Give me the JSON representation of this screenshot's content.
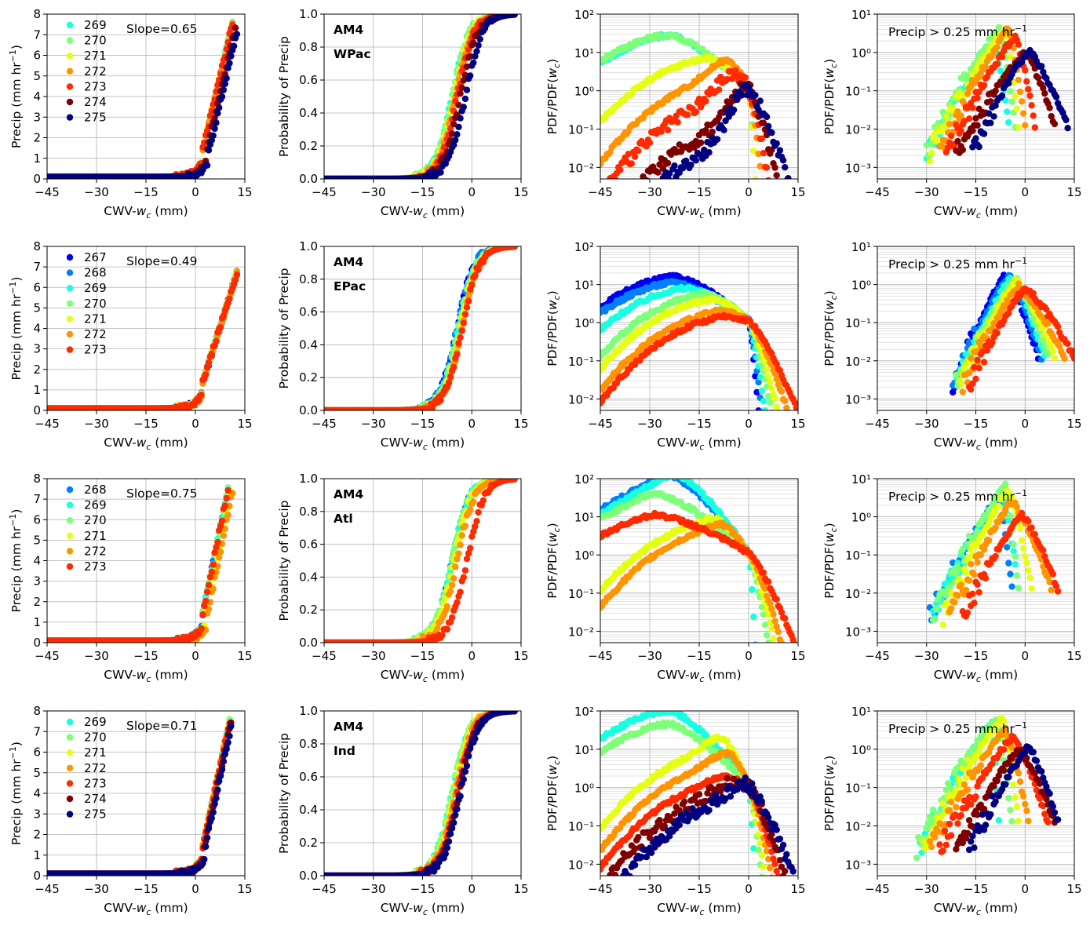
{
  "figure": {
    "rows": [
      "WPac",
      "EPac",
      "Atl",
      "Ind"
    ],
    "model": "AM4"
  },
  "colors": {
    "267": "#0000f0",
    "268": "#0080ff",
    "269": "#16ffe1",
    "270": "#7dff7a",
    "271": "#e5ff12",
    "272": "#ff9400",
    "273": "#ff2a00",
    "274": "#7f0000",
    "275": "#000080"
  },
  "labels": {
    "xlabel": "CWV-w_c (mm)",
    "ylabel_precip": "Precip (mm hr^-1)",
    "ylabel_prob": "Probability of Precip",
    "ylabel_pdf": "PDF/PDF(w_c)",
    "precip_threshold": "Precip > 0.25 mm hr^-1",
    "model_label": "AM4"
  },
  "x_ticks": [
    "−45",
    "−30",
    "−15",
    "0",
    "15"
  ],
  "precip_y_ticks": [
    "0",
    "1",
    "2",
    "3",
    "4",
    "5",
    "6",
    "7",
    "8"
  ],
  "prob_y_ticks": [
    "0.0",
    "0.2",
    "0.4",
    "0.6",
    "0.8",
    "1.0"
  ],
  "pdf_y_ticks": [
    "-2",
    "-1",
    "0",
    "1",
    "2"
  ],
  "cond_y_ticks": [
    "-3",
    "-2",
    "-1",
    "0",
    "1"
  ],
  "chart_data": [
    {
      "type": "scatter",
      "panel": "precip",
      "basin": "WPac",
      "slope_text": "Slope=0.65",
      "series": [
        "269",
        "270",
        "271",
        "272",
        "273",
        "274",
        "275"
      ],
      "x_shift": [
        0,
        0,
        0,
        0,
        0,
        1.2,
        2.0
      ],
      "slope": 0.65,
      "xlim": [
        -45,
        15
      ],
      "ylim": [
        0,
        8
      ],
      "xlabel": "CWV-w_c (mm)",
      "ylabel": "Precip (mm hr^-1)"
    },
    {
      "type": "scatter",
      "panel": "probability",
      "basin": "WPac",
      "series": [
        "269",
        "270",
        "271",
        "272",
        "273",
        "274",
        "275"
      ],
      "x50": [
        -6,
        -6,
        -5.5,
        -5,
        -4.5,
        -3.5,
        -2
      ],
      "xlim": [
        -45,
        15
      ],
      "ylim": [
        0,
        1
      ]
    },
    {
      "type": "scatter",
      "panel": "pdf",
      "basin": "WPac",
      "yscale": "log",
      "series": [
        "269",
        "270",
        "271",
        "272",
        "273",
        "274",
        "275"
      ],
      "plateau_log10": [
        1.35,
        1.4,
        0.75,
        0.3,
        -0.3,
        -1.0,
        -1.4
      ],
      "peak_x": [
        -24,
        -24,
        -12,
        -6,
        -4,
        -1,
        0
      ],
      "peak_log10": [
        1.45,
        1.45,
        0.85,
        0.8,
        0.45,
        0.05,
        0.05
      ],
      "cutoff_x": [
        0,
        1,
        2,
        4,
        6,
        9,
        12
      ],
      "xlim": [
        -45,
        15
      ],
      "ylim_log10": [
        -2.3,
        2
      ]
    },
    {
      "type": "scatter",
      "panel": "pdf_precip",
      "basin": "WPac",
      "yscale": "log",
      "series": [
        "269",
        "270",
        "271",
        "272",
        "273",
        "274",
        "275"
      ],
      "peak_x": [
        -9,
        -8,
        -6,
        -5,
        -3,
        0,
        1
      ],
      "peak_log10": [
        0.1,
        0.6,
        0.6,
        0.6,
        0.4,
        0.0,
        0.05
      ],
      "start_x": [
        -30,
        -30,
        -29,
        -26,
        -24,
        -21,
        -16
      ],
      "end_x": [
        -5,
        -3,
        -2,
        0,
        3,
        9,
        13
      ],
      "xlim": [
        -45,
        15
      ],
      "ylim_log10": [
        -3.3,
        1
      ]
    },
    {
      "type": "scatter",
      "panel": "precip",
      "basin": "EPac",
      "slope_text": "Slope=0.49",
      "series": [
        "267",
        "268",
        "269",
        "270",
        "271",
        "272",
        "273"
      ],
      "x_shift": [
        0,
        0,
        0,
        0,
        0,
        0,
        0
      ],
      "slope": 0.49,
      "xlim": [
        -45,
        15
      ],
      "ylim": [
        0,
        8
      ],
      "xlabel": "CWV-w_c (mm)",
      "ylabel": "Precip (mm hr^-1)"
    },
    {
      "type": "scatter",
      "panel": "probability",
      "basin": "EPac",
      "series": [
        "267",
        "268",
        "269",
        "270",
        "271",
        "272",
        "273"
      ],
      "x50": [
        -4.5,
        -4.5,
        -4,
        -4,
        -3.5,
        -3,
        -3
      ],
      "xlim": [
        -45,
        15
      ],
      "ylim": [
        0,
        1
      ]
    },
    {
      "type": "scatter",
      "panel": "pdf",
      "basin": "EPac",
      "yscale": "log",
      "series": [
        "267",
        "268",
        "269",
        "270",
        "271",
        "272",
        "273"
      ],
      "plateau_log10": [
        1.15,
        1.0,
        0.85,
        0.7,
        0.55,
        0.2,
        0.1
      ],
      "peak_x": [
        -22,
        -22,
        -18,
        -12,
        -10,
        -8,
        -6
      ],
      "peak_log10": [
        1.2,
        1.05,
        0.9,
        0.75,
        0.6,
        0.3,
        0.15
      ],
      "cutoff_x": [
        3,
        4,
        5,
        7,
        9,
        12,
        15
      ],
      "xlim": [
        -45,
        15
      ],
      "ylim_log10": [
        -2.3,
        2
      ]
    },
    {
      "type": "scatter",
      "panel": "pdf_precip",
      "basin": "EPac",
      "yscale": "log",
      "series": [
        "267",
        "268",
        "269",
        "270",
        "271",
        "272",
        "273"
      ],
      "peak_x": [
        -6,
        -5,
        -4,
        -3,
        -3,
        -2,
        0
      ],
      "peak_log10": [
        0.25,
        0.2,
        0.2,
        0.15,
        0.1,
        -0.05,
        -0.1
      ],
      "start_x": [
        -22,
        -22,
        -21,
        -21,
        -20,
        -19,
        -17
      ],
      "end_x": [
        4,
        5,
        6,
        7,
        9,
        12,
        15
      ],
      "xlim": [
        -45,
        15
      ],
      "ylim_log10": [
        -3.3,
        1
      ]
    },
    {
      "type": "scatter",
      "panel": "precip",
      "basin": "Atl",
      "slope_text": "Slope=0.75",
      "series": [
        "268",
        "269",
        "270",
        "271",
        "272",
        "273"
      ],
      "x_shift": [
        0,
        0,
        0,
        1,
        1.5,
        0
      ],
      "slope": 0.75,
      "xlim": [
        -45,
        15
      ],
      "ylim": [
        0,
        8
      ],
      "xlabel": "CWV-w_c (mm)",
      "ylabel": "Precip (mm hr^-1)"
    },
    {
      "type": "scatter",
      "panel": "probability",
      "basin": "Atl",
      "series": [
        "268",
        "269",
        "270",
        "271",
        "272",
        "273"
      ],
      "x50": [
        -6,
        -6,
        -6,
        -5.5,
        -4.5,
        -1.5
      ],
      "xlim": [
        -45,
        15
      ],
      "ylim": [
        0,
        1
      ]
    },
    {
      "type": "scatter",
      "panel": "pdf",
      "basin": "Atl",
      "yscale": "log",
      "series": [
        "268",
        "269",
        "270",
        "271",
        "272",
        "273"
      ],
      "plateau_log10": [
        1.8,
        1.8,
        1.35,
        0.8,
        0.6,
        0.9
      ],
      "peak_x": [
        -24,
        -22,
        -28,
        -10,
        -8,
        -28
      ],
      "peak_log10": [
        2.1,
        2.1,
        1.6,
        0.95,
        0.8,
        1.05
      ],
      "cutoff_x": [
        0,
        2,
        6,
        8,
        10,
        14
      ],
      "xlim": [
        -45,
        15
      ],
      "ylim_log10": [
        -2.3,
        2
      ]
    },
    {
      "type": "scatter",
      "panel": "pdf_precip",
      "basin": "Atl",
      "yscale": "log",
      "series": [
        "268",
        "269",
        "270",
        "271",
        "272",
        "273"
      ],
      "peak_x": [
        -8,
        -7,
        -6,
        -5,
        -4,
        -1
      ],
      "peak_log10": [
        0.5,
        0.6,
        0.8,
        0.7,
        0.4,
        0.05
      ],
      "start_x": [
        -29,
        -28,
        -28,
        -25,
        -23,
        -19
      ],
      "end_x": [
        -4,
        -2,
        -2,
        2,
        8,
        10
      ],
      "xlim": [
        -45,
        15
      ],
      "ylim_log10": [
        -3.3,
        1
      ]
    },
    {
      "type": "scatter",
      "panel": "precip",
      "basin": "Ind",
      "slope_text": "Slope=0.71",
      "series": [
        "269",
        "270",
        "271",
        "272",
        "273",
        "274",
        "275"
      ],
      "x_shift": [
        0,
        0,
        0,
        0,
        0,
        0.5,
        0.8
      ],
      "slope": 0.71,
      "xlim": [
        -45,
        15
      ],
      "ylim": [
        0,
        8
      ],
      "xlabel": "CWV-w_c (mm)",
      "ylabel": "Precip (mm hr^-1)"
    },
    {
      "type": "scatter",
      "panel": "probability",
      "basin": "Ind",
      "series": [
        "269",
        "270",
        "271",
        "272",
        "273",
        "274",
        "275"
      ],
      "x50": [
        -6,
        -6,
        -5.5,
        -5,
        -4.5,
        -4,
        -3.5
      ],
      "xlim": [
        -45,
        15
      ],
      "ylim": [
        0,
        1
      ]
    },
    {
      "type": "scatter",
      "panel": "pdf",
      "basin": "Ind",
      "yscale": "log",
      "series": [
        "269",
        "270",
        "271",
        "272",
        "273",
        "274",
        "275"
      ],
      "plateau_log10": [
        1.9,
        1.55,
        0.9,
        0.55,
        0.1,
        -0.2,
        -0.3
      ],
      "peak_x": [
        -24,
        -24,
        -8,
        -6,
        -6,
        -4,
        0
      ],
      "peak_log10": [
        2.0,
        1.65,
        1.3,
        0.9,
        0.3,
        0.15,
        0.1
      ],
      "cutoff_x": [
        2,
        4,
        5,
        7,
        9,
        11,
        14
      ],
      "xlim": [
        -45,
        15
      ],
      "ylim_log10": [
        -2.3,
        2
      ]
    },
    {
      "type": "scatter",
      "panel": "pdf_precip",
      "basin": "Ind",
      "yscale": "log",
      "series": [
        "269",
        "270",
        "271",
        "272",
        "273",
        "274",
        "275"
      ],
      "peak_x": [
        -10,
        -9,
        -7,
        -6,
        -4,
        -2,
        1
      ],
      "peak_log10": [
        0.7,
        0.8,
        0.8,
        0.5,
        0.3,
        0.0,
        0.05
      ],
      "start_x": [
        -32,
        -33,
        -31,
        -29,
        -26,
        -21,
        -17
      ],
      "end_x": [
        -8,
        -4,
        -2,
        1,
        7,
        9,
        10
      ],
      "xlim": [
        -45,
        15
      ],
      "ylim_log10": [
        -3.3,
        1
      ]
    }
  ]
}
